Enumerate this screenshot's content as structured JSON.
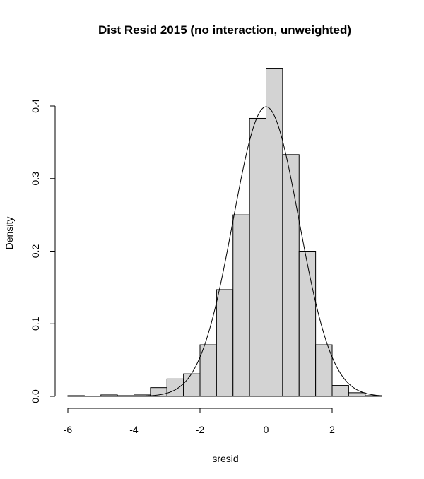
{
  "chart_data": {
    "type": "bar",
    "title": "Dist Resid 2015 (no interaction, unweighted)",
    "xlabel": "sresid",
    "ylabel": "Density",
    "xlim": [
      -6,
      3.5
    ],
    "ylim": [
      0,
      0.45
    ],
    "x_ticks": [
      -6,
      -4,
      -2,
      0,
      2
    ],
    "y_ticks": [
      0.0,
      0.1,
      0.2,
      0.3,
      0.4
    ],
    "y_tick_labels": [
      "0.0",
      "0.1",
      "0.2",
      "0.3",
      "0.4"
    ],
    "bin_width": 0.5,
    "bins": [
      {
        "start": -6.0,
        "density": 0.001
      },
      {
        "start": -5.5,
        "density": 0.0
      },
      {
        "start": -5.0,
        "density": 0.002
      },
      {
        "start": -4.5,
        "density": 0.001
      },
      {
        "start": -4.0,
        "density": 0.002
      },
      {
        "start": -3.5,
        "density": 0.012
      },
      {
        "start": -3.0,
        "density": 0.024
      },
      {
        "start": -2.5,
        "density": 0.031
      },
      {
        "start": -2.0,
        "density": 0.071
      },
      {
        "start": -1.5,
        "density": 0.147
      },
      {
        "start": -1.0,
        "density": 0.25
      },
      {
        "start": -0.5,
        "density": 0.383
      },
      {
        "start": 0.0,
        "density": 0.452
      },
      {
        "start": 0.5,
        "density": 0.333
      },
      {
        "start": 1.0,
        "density": 0.2
      },
      {
        "start": 1.5,
        "density": 0.071
      },
      {
        "start": 2.0,
        "density": 0.015
      },
      {
        "start": 2.5,
        "density": 0.005
      },
      {
        "start": 3.0,
        "density": 0.001
      }
    ],
    "overlay": {
      "type": "line",
      "distribution": "normal",
      "mean": 0,
      "sd": 1,
      "x_range": [
        -6,
        3.5
      ]
    },
    "grid": false,
    "legend": "none"
  }
}
